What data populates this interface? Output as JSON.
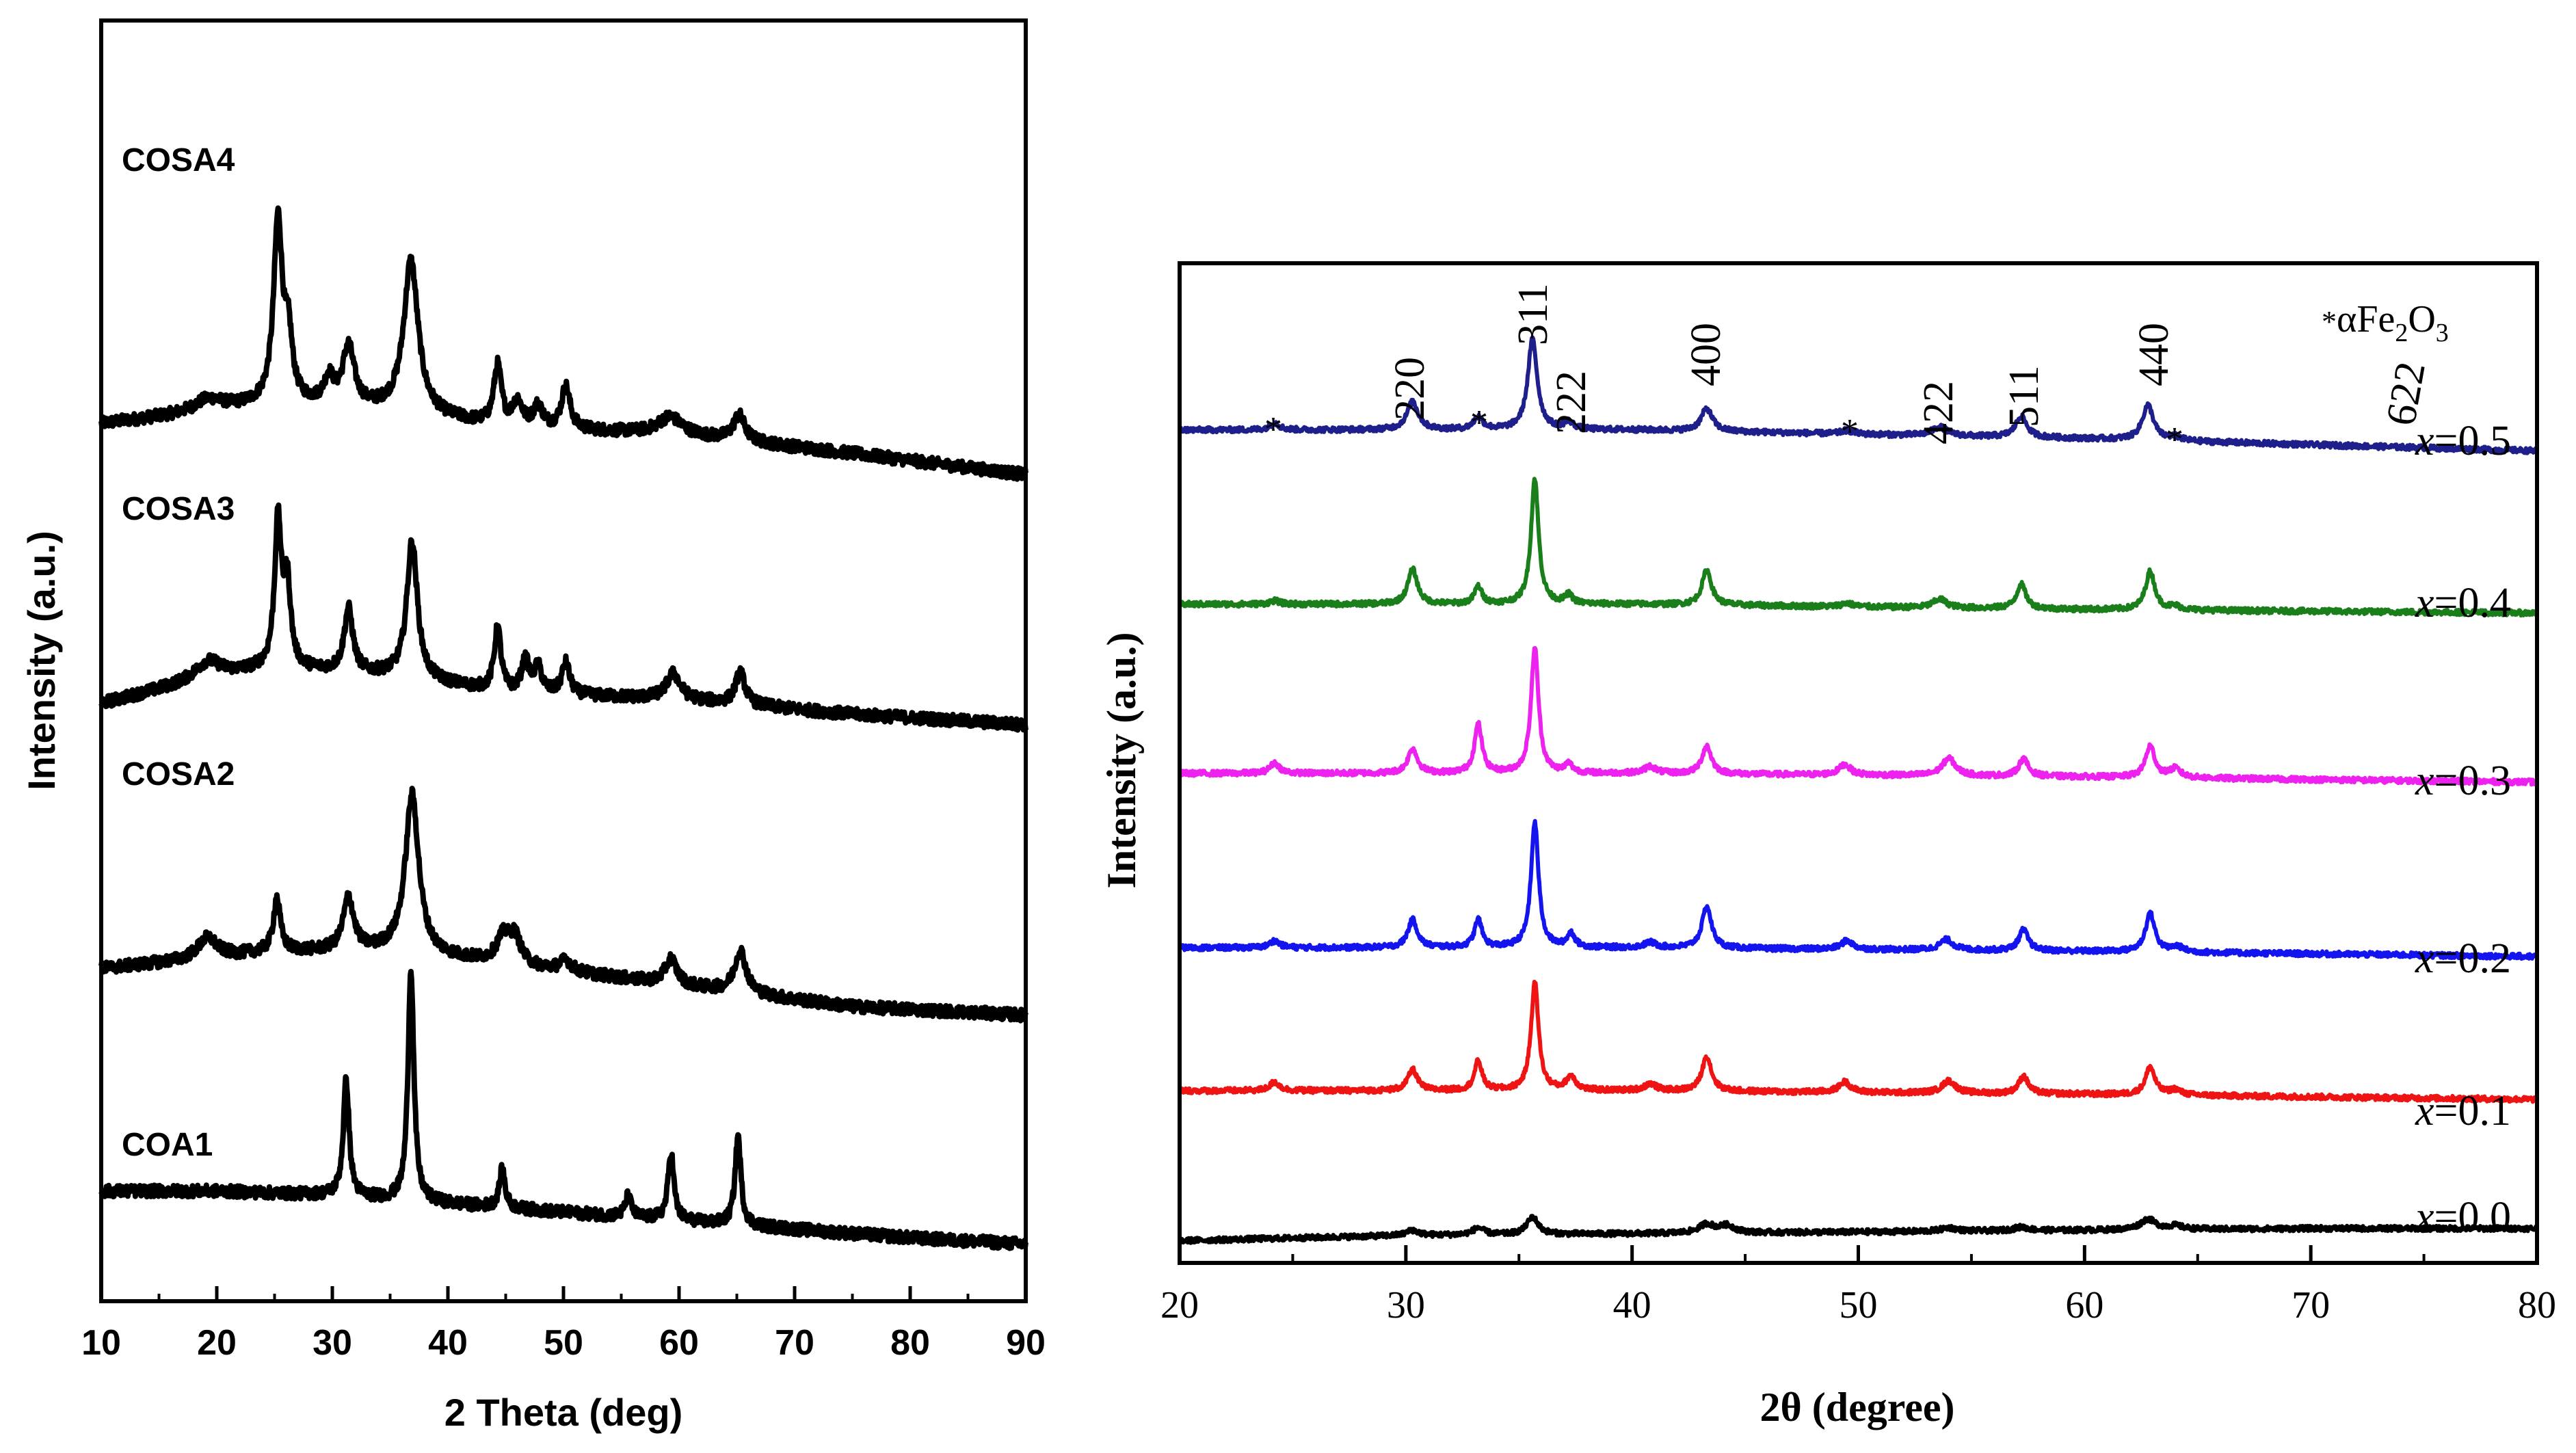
{
  "chart_data": [
    {
      "type": "line",
      "xlabel": "2 Theta (deg)",
      "ylabel": "Intensity (a.u.)",
      "xlim": [
        10,
        90
      ],
      "x_ticks": [
        "10",
        "20",
        "30",
        "40",
        "50",
        "60",
        "70",
        "80",
        "90"
      ],
      "tick_values": [
        10,
        20,
        30,
        40,
        50,
        60,
        70,
        80,
        90
      ],
      "series": [
        {
          "name": "COSA4",
          "color": "#000000",
          "offset": 3.9,
          "baseline": [
            [
              10,
              0.02
            ],
            [
              20,
              0.08
            ],
            [
              25,
              0.12
            ],
            [
              35,
              0.08
            ],
            [
              45,
              0.0
            ],
            [
              60,
              -0.03
            ],
            [
              75,
              -0.12
            ],
            [
              90,
              -0.22
            ]
          ],
          "peaks": [
            [
              19.3,
              0.06,
              1.5
            ],
            [
              25.3,
              0.85,
              0.45
            ],
            [
              26.2,
              0.28,
              0.4
            ],
            [
              29.7,
              0.12,
              0.5
            ],
            [
              31.4,
              0.28,
              0.6
            ],
            [
              36.8,
              0.72,
              0.75
            ],
            [
              44.3,
              0.28,
              0.4
            ],
            [
              46.0,
              0.12,
              0.5
            ],
            [
              47.8,
              0.1,
              0.5
            ],
            [
              50.2,
              0.2,
              0.45
            ],
            [
              59.2,
              0.08,
              1.2
            ],
            [
              65.2,
              0.12,
              0.6
            ]
          ]
        },
        {
          "name": "COSA3",
          "color": "#000000",
          "offset": 2.65,
          "baseline": [
            [
              10,
              -0.05
            ],
            [
              20,
              0.08
            ],
            [
              25,
              0.12
            ],
            [
              35,
              0.08
            ],
            [
              45,
              0.0
            ],
            [
              60,
              -0.03
            ],
            [
              75,
              -0.1
            ],
            [
              90,
              -0.15
            ]
          ],
          "peaks": [
            [
              19.2,
              0.08,
              1.3
            ],
            [
              25.3,
              0.68,
              0.35
            ],
            [
              26.1,
              0.38,
              0.35
            ],
            [
              31.4,
              0.3,
              0.45
            ],
            [
              36.9,
              0.65,
              0.55
            ],
            [
              44.3,
              0.3,
              0.35
            ],
            [
              46.7,
              0.15,
              0.4
            ],
            [
              47.8,
              0.12,
              0.4
            ],
            [
              50.2,
              0.15,
              0.4
            ],
            [
              59.5,
              0.12,
              0.7
            ],
            [
              65.3,
              0.15,
              0.5
            ]
          ]
        },
        {
          "name": "COSA2",
          "color": "#000000",
          "offset": 1.35,
          "baseline": [
            [
              10,
              0.0
            ],
            [
              20,
              0.05
            ],
            [
              25,
              0.08
            ],
            [
              35,
              0.08
            ],
            [
              45,
              0.02
            ],
            [
              60,
              -0.08
            ],
            [
              75,
              -0.18
            ],
            [
              90,
              -0.22
            ]
          ],
          "peaks": [
            [
              19.2,
              0.1,
              1.0
            ],
            [
              25.2,
              0.25,
              0.35
            ],
            [
              31.4,
              0.25,
              0.55
            ],
            [
              36.9,
              0.75,
              0.7
            ],
            [
              44.8,
              0.12,
              0.7
            ],
            [
              45.8,
              0.12,
              0.6
            ],
            [
              50.2,
              0.05,
              0.6
            ],
            [
              59.3,
              0.12,
              0.6
            ],
            [
              65.3,
              0.2,
              0.6
            ]
          ]
        },
        {
          "name": "COA1",
          "color": "#000000",
          "offset": 0.2,
          "baseline": [
            [
              10,
              0.1
            ],
            [
              20,
              0.1
            ],
            [
              30,
              0.08
            ],
            [
              40,
              0.04
            ],
            [
              50,
              0.0
            ],
            [
              60,
              -0.04
            ],
            [
              70,
              -0.08
            ],
            [
              80,
              -0.12
            ],
            [
              90,
              -0.15
            ]
          ],
          "peaks": [
            [
              31.2,
              0.55,
              0.3
            ],
            [
              36.8,
              1.1,
              0.3
            ],
            [
              44.7,
              0.18,
              0.3
            ],
            [
              55.6,
              0.1,
              0.3
            ],
            [
              59.3,
              0.32,
              0.3
            ],
            [
              65.1,
              0.42,
              0.3
            ]
          ]
        }
      ],
      "annotations": [
        "COSA4",
        "COSA3",
        "COSA2",
        "COA1"
      ]
    },
    {
      "type": "line",
      "xlabel": "2θ (degree)",
      "ylabel": "Intensity (a.u.)",
      "xlim": [
        20,
        80
      ],
      "x_ticks": [
        "20",
        "30",
        "40",
        "50",
        "60",
        "70",
        "80"
      ],
      "tick_values": [
        20,
        30,
        40,
        50,
        60,
        70,
        80
      ],
      "series": [
        {
          "name": "x=0.5",
          "color": "#1f1f8c",
          "offset": 4.75,
          "baseline": [
            [
              20,
              0.0
            ],
            [
              40,
              0.0
            ],
            [
              60,
              -0.05
            ],
            [
              80,
              -0.12
            ]
          ],
          "peaks": [
            [
              24.2,
              0.04,
              0.25
            ],
            [
              30.3,
              0.16,
              0.3
            ],
            [
              33.2,
              0.07,
              0.25
            ],
            [
              35.6,
              0.52,
              0.25
            ],
            [
              37.2,
              0.04,
              0.25
            ],
            [
              43.3,
              0.13,
              0.3
            ],
            [
              49.5,
              0.02,
              0.3
            ],
            [
              53.6,
              0.05,
              0.4
            ],
            [
              57.2,
              0.12,
              0.3
            ],
            [
              62.8,
              0.2,
              0.3
            ],
            [
              64.0,
              0.02,
              0.3
            ]
          ]
        },
        {
          "name": "x=0.4",
          "color": "#1a7f1a",
          "offset": 3.75,
          "baseline": [
            [
              20,
              0.0
            ],
            [
              40,
              0.0
            ],
            [
              60,
              -0.03
            ],
            [
              80,
              -0.05
            ]
          ],
          "peaks": [
            [
              24.2,
              0.02,
              0.25
            ],
            [
              30.3,
              0.2,
              0.25
            ],
            [
              33.2,
              0.1,
              0.2
            ],
            [
              35.7,
              0.72,
              0.2
            ],
            [
              37.2,
              0.05,
              0.2
            ],
            [
              43.3,
              0.2,
              0.25
            ],
            [
              49.5,
              0.02,
              0.3
            ],
            [
              53.6,
              0.05,
              0.35
            ],
            [
              57.2,
              0.14,
              0.25
            ],
            [
              62.9,
              0.22,
              0.25
            ],
            [
              64.0,
              0.02,
              0.3
            ]
          ]
        },
        {
          "name": "x=0.3",
          "color": "#ee22ee",
          "offset": 2.78,
          "baseline": [
            [
              20,
              0.0
            ],
            [
              40,
              0.0
            ],
            [
              60,
              -0.02
            ],
            [
              80,
              -0.05
            ]
          ],
          "peaks": [
            [
              24.2,
              0.06,
              0.25
            ],
            [
              30.3,
              0.14,
              0.25
            ],
            [
              33.2,
              0.28,
              0.2
            ],
            [
              35.7,
              0.72,
              0.2
            ],
            [
              37.2,
              0.05,
              0.2
            ],
            [
              40.8,
              0.04,
              0.3
            ],
            [
              43.3,
              0.16,
              0.25
            ],
            [
              49.4,
              0.06,
              0.3
            ],
            [
              54.0,
              0.1,
              0.35
            ],
            [
              57.3,
              0.1,
              0.25
            ],
            [
              62.9,
              0.18,
              0.25
            ],
            [
              64.0,
              0.05,
              0.3
            ]
          ]
        },
        {
          "name": "x=0.2",
          "color": "#1414ee",
          "offset": 1.78,
          "baseline": [
            [
              20,
              0.0
            ],
            [
              40,
              0.0
            ],
            [
              60,
              -0.02
            ],
            [
              80,
              -0.05
            ]
          ],
          "peaks": [
            [
              24.2,
              0.04,
              0.25
            ],
            [
              30.3,
              0.16,
              0.25
            ],
            [
              33.2,
              0.16,
              0.2
            ],
            [
              35.7,
              0.72,
              0.2
            ],
            [
              37.3,
              0.08,
              0.2
            ],
            [
              40.8,
              0.03,
              0.3
            ],
            [
              43.3,
              0.24,
              0.25
            ],
            [
              49.5,
              0.05,
              0.3
            ],
            [
              53.9,
              0.06,
              0.35
            ],
            [
              57.3,
              0.12,
              0.25
            ],
            [
              62.9,
              0.22,
              0.25
            ],
            [
              64.1,
              0.03,
              0.3
            ]
          ]
        },
        {
          "name": "x=0.1",
          "color": "#ee1414",
          "offset": 0.96,
          "baseline": [
            [
              20,
              0.0
            ],
            [
              40,
              0.0
            ],
            [
              60,
              -0.02
            ],
            [
              80,
              -0.05
            ]
          ],
          "peaks": [
            [
              24.2,
              0.05,
              0.25
            ],
            [
              30.3,
              0.12,
              0.25
            ],
            [
              33.2,
              0.17,
              0.2
            ],
            [
              35.7,
              0.62,
              0.2
            ],
            [
              37.3,
              0.08,
              0.25
            ],
            [
              40.8,
              0.04,
              0.3
            ],
            [
              43.3,
              0.2,
              0.25
            ],
            [
              49.4,
              0.06,
              0.3
            ],
            [
              54.0,
              0.07,
              0.35
            ],
            [
              57.3,
              0.1,
              0.25
            ],
            [
              62.9,
              0.16,
              0.25
            ],
            [
              64.0,
              0.03,
              0.3
            ]
          ]
        },
        {
          "name": "x=0.0",
          "color": "#000000",
          "offset": 0.1,
          "baseline": [
            [
              20,
              0.0
            ],
            [
              30,
              0.03
            ],
            [
              40,
              0.04
            ],
            [
              50,
              0.05
            ],
            [
              60,
              0.06
            ],
            [
              70,
              0.07
            ],
            [
              80,
              0.07
            ]
          ],
          "peaks": [
            [
              30.3,
              0.03,
              0.3
            ],
            [
              33.2,
              0.04,
              0.3
            ],
            [
              35.6,
              0.1,
              0.3
            ],
            [
              43.3,
              0.05,
              0.4
            ],
            [
              44.2,
              0.04,
              0.4
            ],
            [
              54.0,
              0.02,
              0.4
            ],
            [
              57.2,
              0.02,
              0.4
            ],
            [
              62.8,
              0.06,
              0.4
            ],
            [
              64.0,
              0.02,
              0.4
            ]
          ]
        }
      ],
      "annotations": [
        "x=0.5",
        "x=0.4",
        "x=0.3",
        "x=0.2",
        "x=0.1",
        "x=0.0"
      ],
      "series_labels": {
        "var": "x",
        "values": [
          "=0.5",
          "=0.4",
          "=0.3",
          "=0.2",
          "=0.1",
          "=0.0"
        ]
      },
      "peak_labels": [
        "220",
        "311",
        "222",
        "400",
        "422",
        "511",
        "440",
        "622"
      ],
      "impurity_legend": {
        "marker": "*",
        "text": "αFe",
        "sub1": "2",
        "mid": "O",
        "sub2": "3"
      }
    }
  ]
}
